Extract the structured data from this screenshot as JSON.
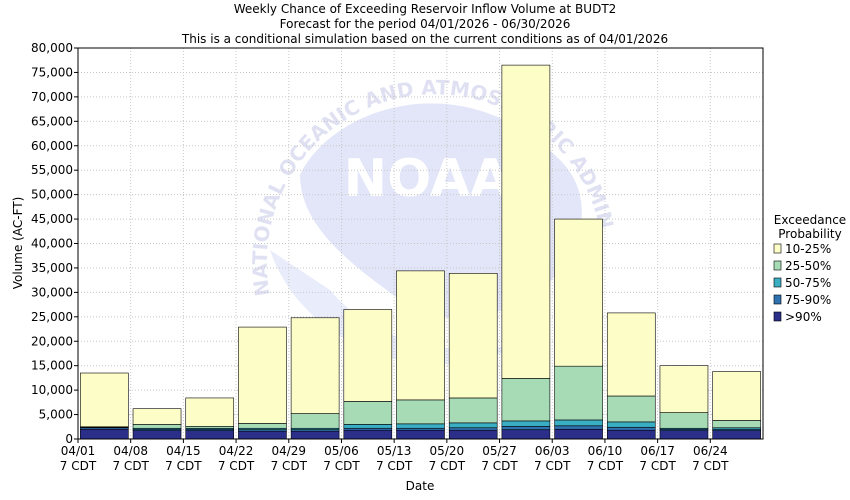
{
  "chart_data": {
    "type": "bar",
    "stacked": true,
    "title_lines": [
      "Weekly Chance of Exceeding Reservoir Inflow Volume at BUDT2",
      "Forecast for the period 04/01/2026 - 06/30/2026",
      "This is a conditional simulation based on the current conditions as of 04/01/2026"
    ],
    "xlabel": "Date",
    "ylabel": "Volume (AC-FT)",
    "ylim": [
      0,
      80000
    ],
    "yticks": [
      0,
      5000,
      10000,
      15000,
      20000,
      25000,
      30000,
      35000,
      40000,
      45000,
      50000,
      55000,
      60000,
      65000,
      70000,
      75000,
      80000
    ],
    "ytick_labels": [
      "0",
      "5,000",
      "10,000",
      "15,000",
      "20,000",
      "25,000",
      "30,000",
      "35,000",
      "40,000",
      "45,000",
      "50,000",
      "55,000",
      "60,000",
      "65,000",
      "70,000",
      "75,000",
      "80,000"
    ],
    "categories": [
      "04/01",
      "04/08",
      "04/15",
      "04/22",
      "04/29",
      "05/06",
      "05/13",
      "05/20",
      "05/27",
      "06/03",
      "06/10",
      "06/17",
      "06/24"
    ],
    "category_sublabel": "7 CDT",
    "grid": true,
    "legend": {
      "title_lines": [
        "Exceedance",
        "Probability"
      ],
      "position": "right"
    },
    "series": [
      {
        "name": ">90%",
        "color": "#2b2f8a",
        "values": [
          2000,
          1700,
          1700,
          1600,
          1600,
          1800,
          1800,
          1800,
          1900,
          2000,
          1800,
          1700,
          1700
        ]
      },
      {
        "name": "75-90%",
        "color": "#2f72b0",
        "values": [
          300,
          300,
          300,
          300,
          300,
          400,
          400,
          500,
          700,
          700,
          600,
          300,
          300
        ]
      },
      {
        "name": "50-75%",
        "color": "#3aaec3",
        "values": [
          100,
          200,
          200,
          300,
          300,
          800,
          900,
          1000,
          1100,
          1200,
          1100,
          200,
          300
        ]
      },
      {
        "name": "25-50%",
        "color": "#a6dbb6",
        "values": [
          100,
          800,
          400,
          1000,
          3000,
          4700,
          4900,
          5100,
          8700,
          11000,
          5300,
          3200,
          1500
        ]
      },
      {
        "name": "10-25%",
        "color": "#fdfdc8",
        "values": [
          11000,
          3200,
          5800,
          19700,
          19600,
          18800,
          26400,
          25500,
          64100,
          30100,
          17000,
          9600,
          10000
        ]
      }
    ],
    "watermark": {
      "text_top": "NATIONAL OCEANIC AND ATMOSPHERIC ADMINISTRATION",
      "logo_text": "NOAA"
    }
  }
}
